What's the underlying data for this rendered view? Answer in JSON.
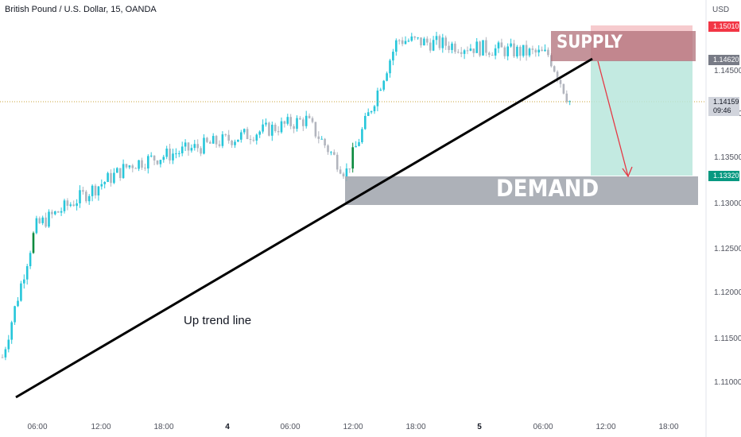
{
  "header": {
    "title": "British Pound / U.S. Dollar, 15, OANDA",
    "currency": "USD"
  },
  "annotations": {
    "supply_label": "SUPPLY",
    "demand_label": "DEMAND",
    "trendline_label": "Up trend line"
  },
  "price_tags": {
    "target": "1.15010",
    "entry": "1.14620",
    "current": "1.14159",
    "countdown": "09:46",
    "stop": "1.13320"
  },
  "colors": {
    "up": "#26c6da",
    "down": "#b2b5be",
    "bull_impulse": "#0b8a3e",
    "supply_zone": "#c9878d",
    "demand_zone": "#9fa3ac",
    "target_zone": "#b9e6dc",
    "arrow": "#e53945",
    "trendline": "#000000"
  },
  "chart_data": {
    "type": "candlestick",
    "symbol": "British Pound / U.S. Dollar",
    "interval": "15",
    "source": "OANDA",
    "y_axis": {
      "ticks": [
        "1.14500",
        "1.14000",
        "1.13500",
        "1.13000",
        "1.12500",
        "1.12000",
        "1.11500",
        "1.11000"
      ],
      "range": [
        1.107,
        1.153
      ]
    },
    "x_axis": {
      "ticks": [
        "06:00",
        "12:00",
        "18:00",
        "4",
        "06:00",
        "12:00",
        "18:00",
        "5",
        "06:00",
        "12:00",
        "18:00"
      ]
    },
    "current_price": 1.14159,
    "position": {
      "entry": 1.1462,
      "target": 1.1501,
      "stop": 1.1332
    },
    "key_points": [
      {
        "name": "start",
        "price": 1.1128
      },
      {
        "name": "first-impulse-high",
        "price": 1.1275
      },
      {
        "name": "day-1-high",
        "price": 1.1345
      },
      {
        "name": "day-2-high",
        "price": 1.1395
      },
      {
        "name": "pullback-low",
        "price": 1.1335
      },
      {
        "name": "peak",
        "price": 1.1485
      },
      {
        "name": "retest-high",
        "price": 1.1468
      },
      {
        "name": "current",
        "price": 1.14159
      }
    ],
    "zones": [
      {
        "name": "SUPPLY",
        "from": 1.1455,
        "to": 1.1489
      },
      {
        "name": "DEMAND",
        "from": 1.1298,
        "to": 1.1329
      }
    ],
    "trendline": {
      "name": "Up trend line",
      "from_price": 1.1089,
      "to_price": 1.1458
    }
  }
}
